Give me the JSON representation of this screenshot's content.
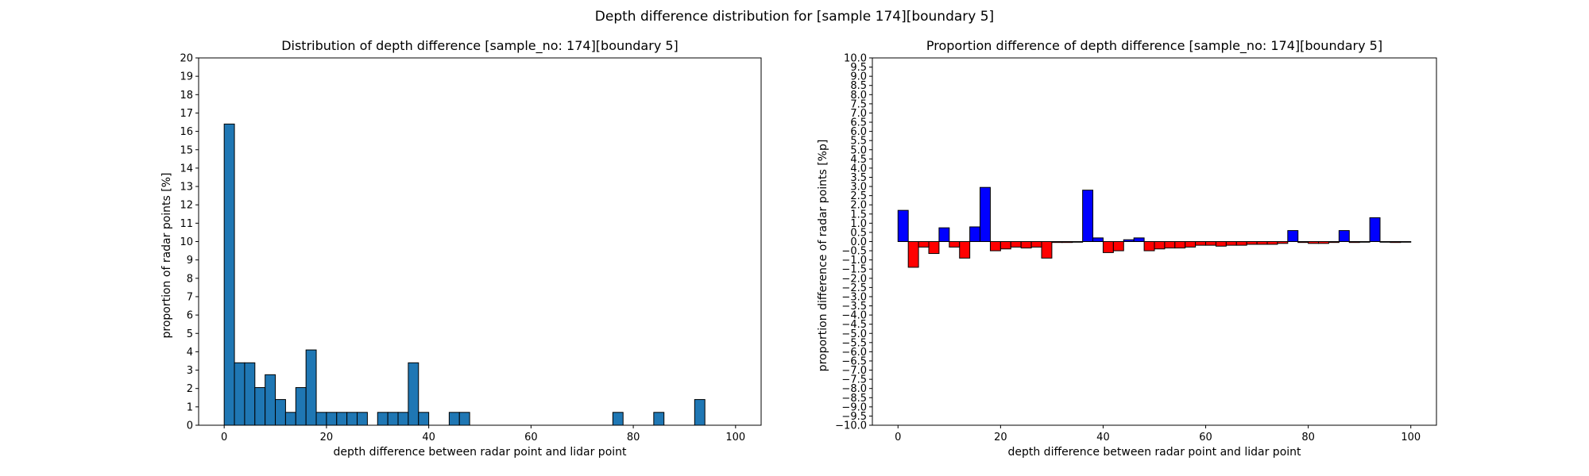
{
  "figure": {
    "suptitle": "Depth difference distribution for [sample 174][boundary 5]"
  },
  "chart_data": [
    {
      "type": "bar",
      "title": "Distribution of depth difference [sample_no: 174][boundary 5]",
      "xlabel": "depth difference between radar point and lidar point",
      "ylabel": "proportion of radar points [%]",
      "xlim": [
        -5,
        105
      ],
      "ylim": [
        0,
        20
      ],
      "xticks": [
        0,
        20,
        40,
        60,
        80,
        100
      ],
      "yticks": [
        0,
        1,
        2,
        3,
        4,
        5,
        6,
        7,
        8,
        9,
        10,
        11,
        12,
        13,
        14,
        15,
        16,
        17,
        18,
        19,
        20
      ],
      "bin_width": 2,
      "bin_edges_start": [
        0,
        2,
        4,
        6,
        8,
        10,
        12,
        14,
        16,
        18,
        20,
        22,
        24,
        26,
        28,
        30,
        32,
        34,
        36,
        38,
        40,
        42,
        44,
        46,
        48,
        50,
        52,
        54,
        56,
        58,
        60,
        62,
        64,
        66,
        68,
        70,
        72,
        74,
        76,
        78,
        80,
        82,
        84,
        86,
        88,
        90,
        92,
        94,
        96,
        98
      ],
      "values": [
        16.4,
        3.4,
        3.4,
        2.05,
        2.75,
        1.4,
        0.7,
        2.05,
        4.1,
        0.7,
        0.7,
        0.7,
        0.7,
        0.7,
        0,
        0.7,
        0.7,
        0.7,
        3.4,
        0.7,
        0,
        0,
        0.7,
        0.7,
        0,
        0,
        0,
        0,
        0,
        0,
        0,
        0,
        0,
        0,
        0,
        0,
        0,
        0,
        0.7,
        0,
        0,
        0,
        0.7,
        0,
        0,
        0,
        1.4,
        0,
        0,
        0
      ],
      "bar_color": "#1f77b4",
      "edge_color": "#000000"
    },
    {
      "type": "bar",
      "title": "Proportion difference of depth difference [sample_no: 174][boundary 5]",
      "xlabel": "depth difference between radar point and lidar point",
      "ylabel": "proportion difference of radar points [%p]",
      "xlim": [
        -5,
        105
      ],
      "ylim": [
        -10,
        10
      ],
      "xticks": [
        0,
        20,
        40,
        60,
        80,
        100
      ],
      "ytick_step": 0.5,
      "bin_width": 2,
      "bin_edges_start": [
        0,
        2,
        4,
        6,
        8,
        10,
        12,
        14,
        16,
        18,
        20,
        22,
        24,
        26,
        28,
        30,
        32,
        34,
        36,
        38,
        40,
        42,
        44,
        46,
        48,
        50,
        52,
        54,
        56,
        58,
        60,
        62,
        64,
        66,
        68,
        70,
        72,
        74,
        76,
        78,
        80,
        82,
        84,
        86,
        88,
        90,
        92,
        94,
        96,
        98
      ],
      "values": [
        1.7,
        -1.4,
        -0.3,
        -0.65,
        0.75,
        -0.3,
        -0.9,
        0.8,
        2.95,
        -0.5,
        -0.4,
        -0.3,
        -0.35,
        -0.3,
        -0.9,
        -0.05,
        -0.05,
        0.0,
        2.8,
        0.2,
        -0.6,
        -0.5,
        0.1,
        0.2,
        -0.5,
        -0.4,
        -0.35,
        -0.35,
        -0.3,
        -0.2,
        -0.2,
        -0.25,
        -0.2,
        -0.2,
        -0.15,
        -0.15,
        -0.15,
        -0.1,
        0.6,
        -0.05,
        -0.1,
        -0.1,
        -0.05,
        0.6,
        -0.05,
        0.0,
        1.3,
        0.0,
        -0.05,
        0.0
      ],
      "positive_color": "#0000ff",
      "negative_color": "#ff0000",
      "edge_color": "#000000"
    }
  ]
}
